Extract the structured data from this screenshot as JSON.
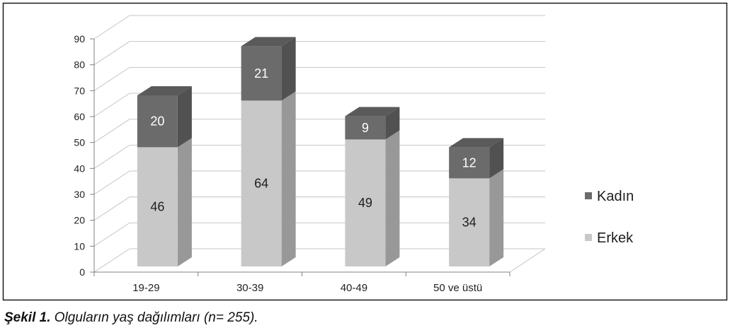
{
  "chart_data": {
    "type": "bar",
    "stacked": true,
    "style": "3d",
    "categories": [
      "19-29",
      "30-39",
      "40-49",
      "50 ve üstü"
    ],
    "series": [
      {
        "name": "Erkek",
        "values": [
          46,
          64,
          49,
          34
        ],
        "color": "#c8c8c8",
        "label_color": "#1e1e1e"
      },
      {
        "name": "Kadın",
        "values": [
          20,
          21,
          9,
          12
        ],
        "color": "#6b6b6b",
        "label_color": "#ffffff"
      }
    ],
    "ylim": [
      0,
      90
    ],
    "yticks": [
      "0",
      "10",
      "20",
      "30",
      "40",
      "50",
      "60",
      "70",
      "80",
      "90"
    ],
    "grid": true,
    "data_labels": true,
    "legend_position": "right"
  },
  "caption": {
    "label": "Şekil 1.",
    "text": "Olguların yaş dağılımları (n= 255)."
  }
}
